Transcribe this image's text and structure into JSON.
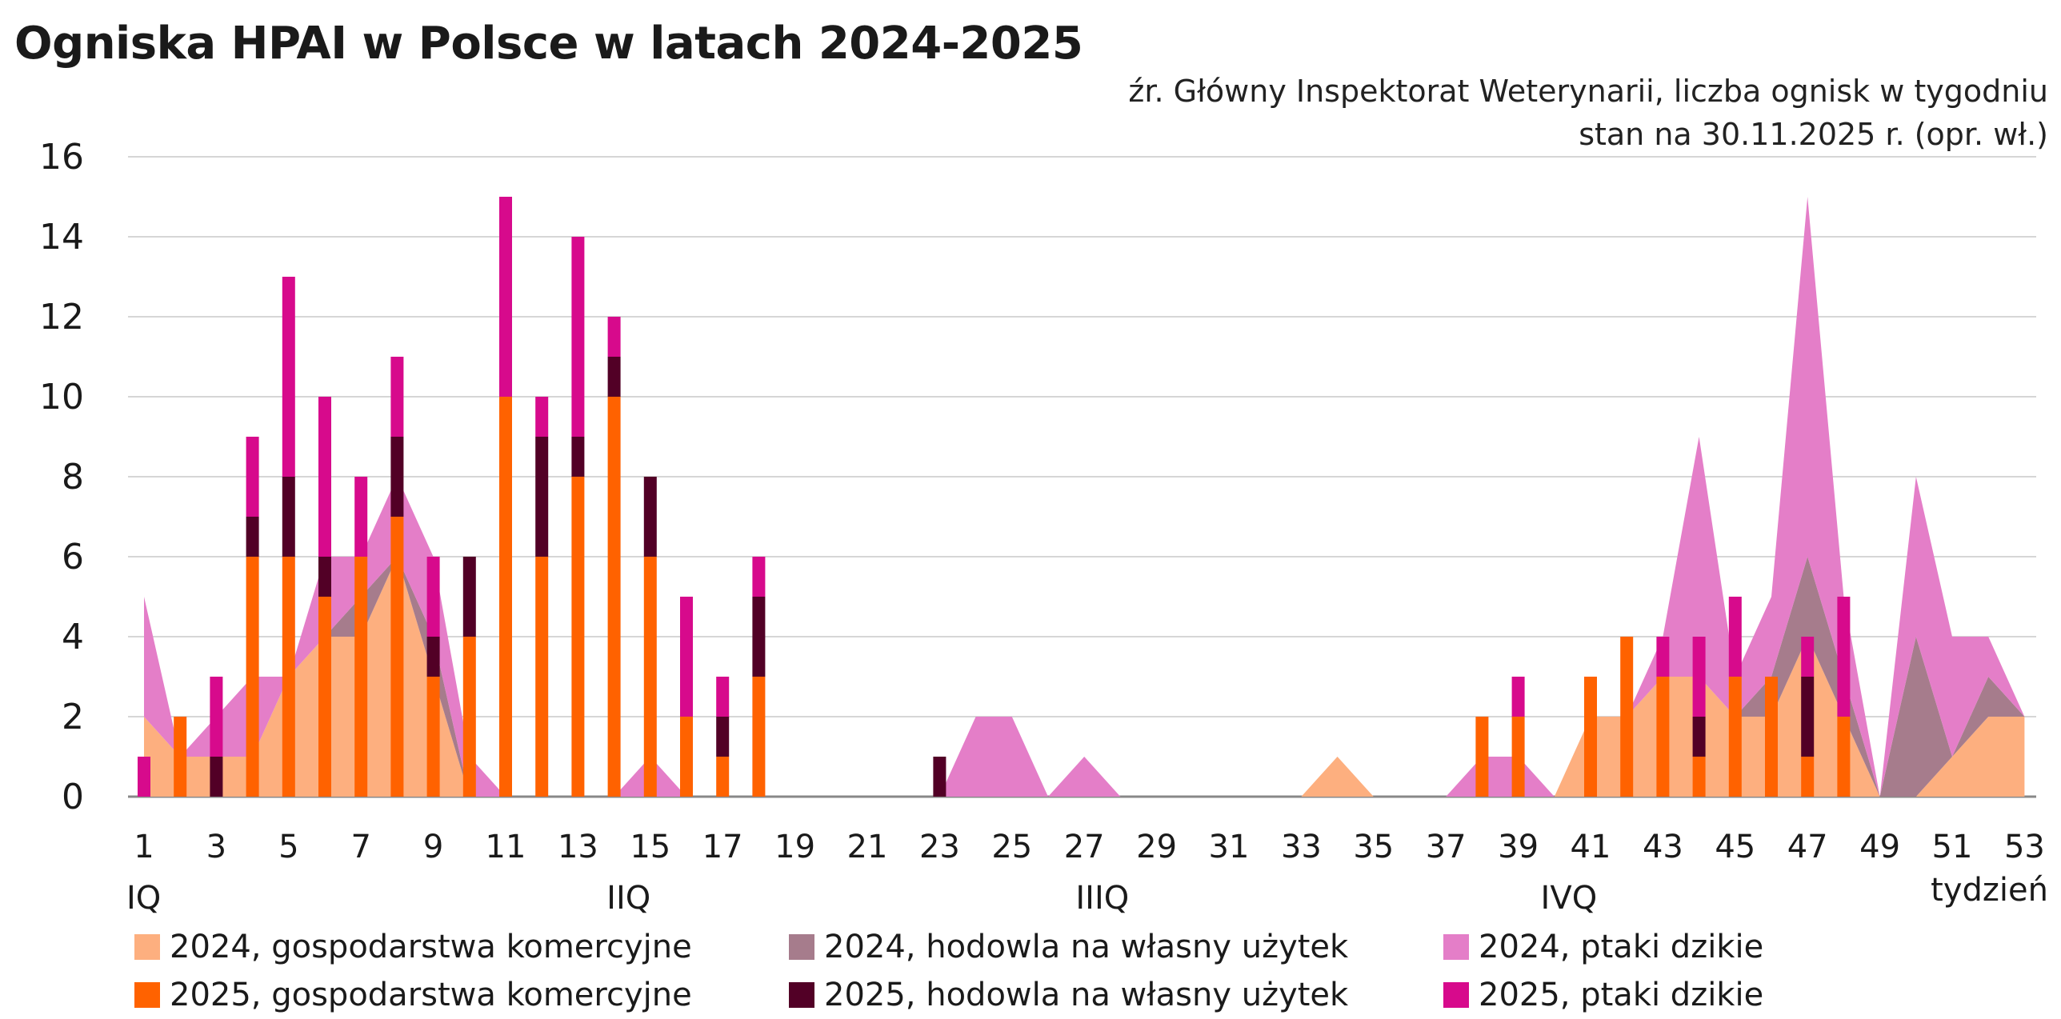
{
  "title": "Ogniska HPAI w Polsce w latach 2024-2025",
  "source_line1": "źr. Główny Inspektorat Weterynarii, liczba ognisk w tygodniu",
  "source_line2": "stan na 30.11.2025 r. (opr. wł.)",
  "legend": [
    {
      "label": "2024, gospodarstwa komercyjne",
      "color": "#FDAF7F"
    },
    {
      "label": "2024, hodowla na własny użytek",
      "color": "#A67C8C"
    },
    {
      "label": "2024, ptaki dzikie",
      "color": "#E47EC8"
    },
    {
      "label": "2025, gospodarstwa komercyjne",
      "color": "#FF6200"
    },
    {
      "label": "2025, hodowla na własny użytek",
      "color": "#520026"
    },
    {
      "label": "2025, ptaki dzikie",
      "color": "#D70A8C"
    }
  ],
  "chart_data": {
    "type": "bar",
    "title": "Ogniska HPAI w Polsce w latach 2024-2025",
    "xlabel": "tydzień",
    "ylabel": "",
    "ylim": [
      0,
      16
    ],
    "yticks": [
      "0",
      "2",
      "4",
      "6",
      "8",
      "10",
      "12",
      "14",
      "16"
    ],
    "xticks": [
      "1",
      "3",
      "5",
      "7",
      "9",
      "11",
      "13",
      "15",
      "17",
      "19",
      "21",
      "23",
      "25",
      "27",
      "29",
      "31",
      "33",
      "35",
      "37",
      "39",
      "41",
      "43",
      "45",
      "47",
      "49",
      "51",
      "53"
    ],
    "quarters": [
      "IQ",
      "IIQ",
      "IIIQ",
      "IVQ"
    ],
    "weeks": [
      1,
      2,
      3,
      4,
      5,
      6,
      7,
      8,
      9,
      10,
      11,
      12,
      13,
      14,
      15,
      16,
      17,
      18,
      19,
      20,
      21,
      22,
      23,
      24,
      25,
      26,
      27,
      28,
      29,
      30,
      31,
      32,
      33,
      34,
      35,
      36,
      37,
      38,
      39,
      40,
      41,
      42,
      43,
      44,
      45,
      46,
      47,
      48,
      49,
      50,
      51,
      52,
      53
    ],
    "areas_2024": [
      {
        "name": "2024, gospodarstwa komercyjne",
        "values": [
          2,
          1,
          1,
          1,
          3,
          4,
          4,
          6,
          3,
          0,
          0,
          0,
          0,
          0,
          0,
          0,
          0,
          0,
          0,
          0,
          0,
          0,
          0,
          0,
          0,
          0,
          0,
          0,
          0,
          0,
          0,
          0,
          0,
          1,
          0,
          0,
          0,
          0,
          0,
          0,
          2,
          2,
          3,
          3,
          2,
          2,
          4,
          2,
          0,
          0,
          1,
          2,
          2
        ]
      },
      {
        "name": "2024, hodowla na własny użytek",
        "values": [
          0,
          0,
          0,
          0,
          0,
          0,
          1,
          0,
          1,
          0,
          0,
          0,
          0,
          0,
          0,
          0,
          0,
          0,
          0,
          0,
          0,
          0,
          0,
          0,
          0,
          0,
          0,
          0,
          0,
          0,
          0,
          0,
          0,
          0,
          0,
          0,
          0,
          0,
          0,
          0,
          0,
          0,
          0,
          0,
          0,
          1,
          2,
          1,
          0,
          4,
          0,
          1,
          0
        ]
      },
      {
        "name": "2024, ptaki dzikie",
        "values": [
          3,
          0,
          1,
          2,
          0,
          2,
          1,
          2,
          2,
          1,
          0,
          0,
          0,
          0,
          1,
          0,
          0,
          0,
          0,
          0,
          0,
          0,
          0,
          2,
          2,
          0,
          1,
          0,
          0,
          0,
          0,
          0,
          0,
          0,
          0,
          0,
          0,
          1,
          1,
          0,
          0,
          0,
          1,
          6,
          1,
          2,
          9,
          2,
          0,
          4,
          3,
          1,
          0
        ]
      }
    ],
    "bars_2025": [
      {
        "name": "2025, gospodarstwa komercyjne",
        "values": [
          0,
          2,
          0,
          6,
          6,
          5,
          6,
          7,
          3,
          4,
          10,
          6,
          8,
          10,
          6,
          2,
          1,
          3,
          0,
          0,
          0,
          0,
          0,
          0,
          0,
          0,
          0,
          0,
          0,
          0,
          0,
          0,
          0,
          0,
          0,
          0,
          0,
          2,
          2,
          0,
          3,
          4,
          3,
          1,
          3,
          3,
          1,
          2,
          0,
          0,
          0,
          0,
          0
        ]
      },
      {
        "name": "2025, hodowla na własny użytek",
        "values": [
          0,
          0,
          1,
          1,
          2,
          1,
          0,
          2,
          1,
          2,
          0,
          3,
          1,
          1,
          2,
          0,
          1,
          2,
          0,
          0,
          0,
          0,
          1,
          0,
          0,
          0,
          0,
          0,
          0,
          0,
          0,
          0,
          0,
          0,
          0,
          0,
          0,
          0,
          0,
          0,
          0,
          0,
          0,
          1,
          0,
          0,
          2,
          0,
          0,
          0,
          0,
          0,
          0
        ]
      },
      {
        "name": "2025, ptaki dzikie",
        "values": [
          1,
          0,
          2,
          2,
          5,
          4,
          2,
          2,
          2,
          0,
          5,
          1,
          5,
          1,
          0,
          3,
          1,
          1,
          0,
          0,
          0,
          0,
          0,
          0,
          0,
          0,
          0,
          0,
          0,
          0,
          0,
          0,
          0,
          0,
          0,
          0,
          0,
          0,
          1,
          0,
          0,
          0,
          1,
          2,
          2,
          0,
          1,
          3,
          0,
          0,
          0,
          0,
          0
        ]
      }
    ]
  }
}
